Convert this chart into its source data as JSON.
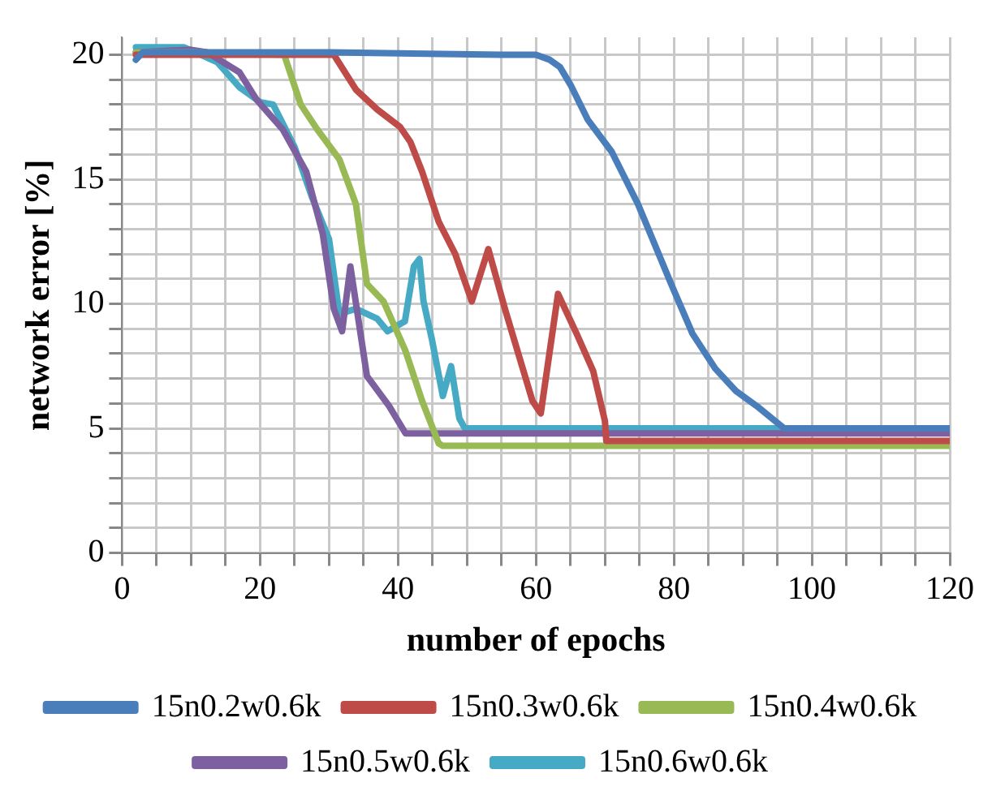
{
  "chart_data": {
    "type": "line",
    "xlabel": "number of epochs",
    "ylabel": "network error [%]",
    "xlim": [
      0,
      120
    ],
    "ylim": [
      0,
      20.7
    ],
    "xticks": [
      0,
      {
        "value": 5,
        "label": null
      },
      {
        "value": 10,
        "label": null
      },
      {
        "value": 15,
        "label": null
      },
      20,
      {
        "value": 25,
        "label": null
      },
      {
        "value": 30,
        "label": null
      },
      {
        "value": 35,
        "label": null
      },
      40,
      {
        "value": 45,
        "label": null
      },
      {
        "value": 50,
        "label": null
      },
      {
        "value": 55,
        "label": null
      },
      60,
      {
        "value": 65,
        "label": null
      },
      {
        "value": 70,
        "label": null
      },
      {
        "value": 75,
        "label": null
      },
      80,
      {
        "value": 85,
        "label": null
      },
      {
        "value": 90,
        "label": null
      },
      {
        "value": 95,
        "label": null
      },
      100,
      {
        "value": 105,
        "label": null
      },
      {
        "value": 110,
        "label": null
      },
      {
        "value": 115,
        "label": null
      },
      120
    ],
    "yticks": [
      0,
      {
        "value": 1,
        "label": null
      },
      {
        "value": 2,
        "label": null
      },
      {
        "value": 3,
        "label": null
      },
      {
        "value": 4,
        "label": null
      },
      5,
      {
        "value": 6,
        "label": null
      },
      {
        "value": 7,
        "label": null
      },
      {
        "value": 8,
        "label": null
      },
      {
        "value": 9,
        "label": null
      },
      10,
      {
        "value": 11,
        "label": null
      },
      {
        "value": 12,
        "label": null
      },
      {
        "value": 13,
        "label": null
      },
      {
        "value": 14,
        "label": null
      },
      15,
      {
        "value": 16,
        "label": null
      },
      {
        "value": 17,
        "label": null
      },
      {
        "value": 18,
        "label": null
      },
      {
        "value": 19,
        "label": null
      },
      20
    ],
    "grid": true,
    "legend": "bottom",
    "marker": "none",
    "line_style": "solid",
    "series": [
      {
        "name": "15n0.2w0.6k",
        "color": "#4a7ebb",
        "x": [
          2,
          3,
          10,
          30,
          55,
          60,
          62,
          63.5,
          65,
          67.5,
          71,
          74.8,
          79.6,
          82.7,
          86,
          89,
          92,
          96,
          120
        ],
        "values": [
          19.8,
          20.1,
          20.1,
          20.1,
          20.0,
          20.0,
          19.8,
          19.5,
          18.8,
          17.4,
          16.1,
          14.0,
          10.8,
          8.8,
          7.4,
          6.5,
          5.9,
          5.0,
          5.0
        ]
      },
      {
        "name": "15n0.3w0.6k",
        "color": "#be4b48",
        "x": [
          2,
          10,
          20,
          30.7,
          33.9,
          37,
          40.3,
          41.8,
          43.5,
          45.9,
          48.3,
          50.7,
          53.1,
          55.5,
          59.5,
          60.7,
          63.2,
          65.9,
          68.3,
          70,
          70.2,
          120
        ],
        "values": [
          20.0,
          20.0,
          20.0,
          20.0,
          18.6,
          17.8,
          17.1,
          16.5,
          15.3,
          13.3,
          12.0,
          10.1,
          12.2,
          9.8,
          6.1,
          5.6,
          10.4,
          8.8,
          7.3,
          5.3,
          4.5,
          4.5
        ]
      },
      {
        "name": "15n0.4w0.6k",
        "color": "#98b954",
        "x": [
          2,
          10,
          23.5,
          25.9,
          28.3,
          31.5,
          33.9,
          35.5,
          37.9,
          41.1,
          43.5,
          45.9,
          46.5,
          120
        ],
        "values": [
          20.1,
          20.1,
          20.0,
          18.0,
          17.0,
          15.8,
          14.0,
          10.8,
          10.1,
          8.1,
          6.1,
          4.4,
          4.3,
          4.3
        ]
      },
      {
        "name": "15n0.5w0.6k",
        "color": "#7d60a0",
        "x": [
          2,
          10,
          12.3,
          17,
          19.5,
          23.3,
          26.7,
          29.1,
          30.7,
          31.9,
          33.1,
          34.3,
          35.5,
          38.7,
          41.1,
          120
        ],
        "values": [
          20.1,
          20.2,
          20.1,
          19.3,
          18.2,
          17.0,
          15.3,
          12.8,
          9.8,
          8.9,
          11.5,
          9.3,
          7.1,
          5.9,
          4.8,
          4.8
        ]
      },
      {
        "name": "15n0.6w0.6k",
        "color": "#46aac5",
        "x": [
          2,
          5,
          9,
          13.8,
          17,
          20,
          21.9,
          25,
          27.5,
          30,
          31.5,
          33.9,
          37,
          38.5,
          41,
          42.3,
          43.1,
          43.7,
          44.9,
          46.5,
          47.7,
          48.9,
          49.7,
          120
        ],
        "values": [
          20.3,
          20.3,
          20.3,
          19.7,
          18.7,
          18.1,
          18.0,
          16.3,
          14.3,
          12.6,
          9.6,
          9.8,
          9.4,
          8.9,
          9.3,
          11.5,
          11.8,
          10.1,
          8.6,
          6.3,
          7.5,
          5.4,
          5.0,
          5.0
        ]
      }
    ]
  }
}
